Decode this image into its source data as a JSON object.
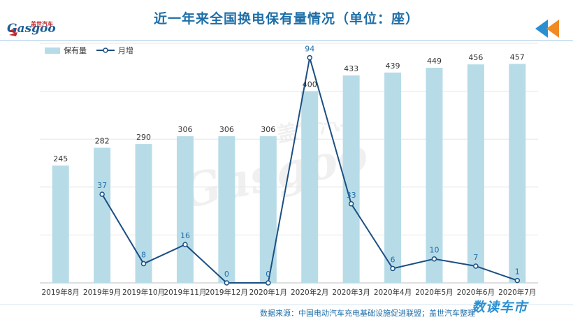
{
  "header": {
    "title": "近一年来全国换电保有量情况（单位：座）",
    "logo_text": "Gasgoo",
    "logo_cn": "盖世汽车",
    "corner_icon": "double-arrow-icon",
    "accent_color": "#1f6fa8"
  },
  "footer": {
    "source": "数据来源：中国电动汽车充电基础设施促进联盟；盖世汽车整理",
    "brand": "数读车市"
  },
  "watermark": {
    "text": "Gasgoo",
    "cn": "盖世汽车"
  },
  "chart_data": {
    "type": "bar",
    "categories": [
      "2019年8月",
      "2019年9月",
      "2019年10月",
      "2019年11月",
      "2019年12月",
      "2020年1月",
      "2020年2月",
      "2020年3月",
      "2020年4月",
      "2020年5月",
      "2020年6月",
      "2020年7月"
    ],
    "series": [
      {
        "name": "保有量",
        "type": "bar",
        "color": "#b7dce8",
        "values": [
          245,
          282,
          290,
          306,
          306,
          306,
          400,
          433,
          439,
          449,
          456,
          457
        ]
      },
      {
        "name": "月增",
        "type": "line",
        "color": "#1b4f82",
        "values": [
          null,
          37,
          8,
          16,
          0,
          0,
          94,
          33,
          6,
          10,
          7,
          1
        ]
      }
    ],
    "title": "近一年来全国换电保有量情况（单位：座）",
    "xlabel": "",
    "ylabel": "",
    "ylim_bar": [
      0,
      500
    ],
    "ylim_line": [
      0,
      100
    ],
    "grid": true,
    "legend": "top-left"
  }
}
